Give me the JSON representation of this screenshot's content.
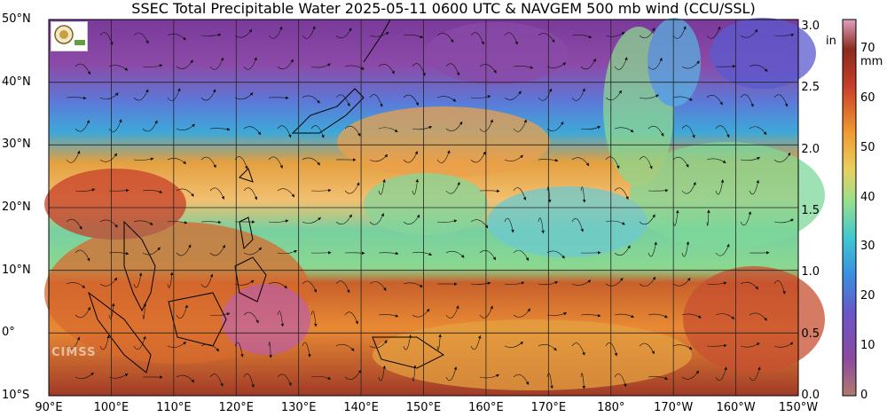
{
  "title": "SSEC Total Precipitable Water  2025-05-11 0600 UTC & NAVGEM 500 mb wind (CCU/SSL)",
  "latitude_labels": [
    "50°N",
    "40°N",
    "30°N",
    "20°N",
    "10°N",
    "0°",
    "10°S"
  ],
  "longitude_labels": [
    "90°E",
    "100°E",
    "110°E",
    "120°E",
    "130°E",
    "140°E",
    "150°E",
    "160°E",
    "170°E",
    "180°",
    "170°W",
    "160°W",
    "150°W"
  ],
  "colorbar": {
    "inch_unit": "in",
    "inch_ticks": [
      "3.0",
      "2.5",
      "2.0",
      "1.5",
      "1.0",
      "0.5",
      "0.0"
    ],
    "mm_unit": "mm",
    "mm_ticks": [
      "70",
      "60",
      "50",
      "40",
      "30",
      "20",
      "10",
      "0"
    ]
  },
  "logo_text": "CIMSS",
  "colors": {
    "low_tpw": "#8a3fa0",
    "mid_low": "#3a8fe0",
    "mid": "#6fd0a0",
    "mid_high": "#f0902c",
    "high_tpw": "#8a2a1e"
  }
}
